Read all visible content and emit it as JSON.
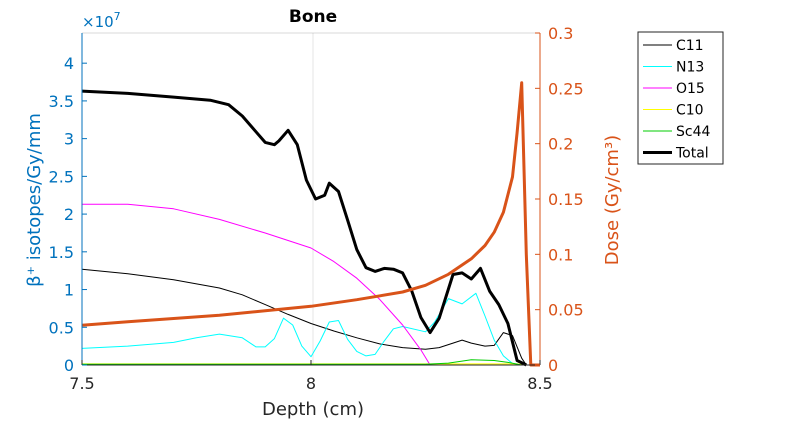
{
  "chart_data": {
    "type": "line",
    "title": "Bone",
    "xlabel": "Depth (cm)",
    "ylabel_left": "β⁺ isotopes/Gy/mm",
    "ylabel_right": "Dose (Gy/cm³)",
    "left_exponent": "×10",
    "left_exponent_power": "7",
    "xlim": [
      7.5,
      8.5
    ],
    "ylim_left": [
      0,
      44000000
    ],
    "ylim_right": [
      0,
      0.3
    ],
    "x_ticks": [
      "7.5",
      "8",
      "8.5"
    ],
    "y_left_ticks": [
      "0",
      "0.5",
      "1",
      "1.5",
      "2",
      "2.5",
      "3",
      "3.5",
      "4"
    ],
    "y_right_ticks": [
      "0",
      "0.05",
      "0.1",
      "0.15",
      "0.2",
      "0.25",
      "0.3"
    ],
    "grid": "x at 8",
    "legend_position": "outside top-right",
    "colors": {
      "left_axis": "#0072BD",
      "right_axis": "#D95319"
    },
    "series": [
      {
        "name": "C11",
        "color": "#000000",
        "width": 1,
        "axis": "left",
        "points": [
          [
            7.5,
            12700000
          ],
          [
            7.6,
            12100000
          ],
          [
            7.7,
            11300000
          ],
          [
            7.8,
            10200000
          ],
          [
            7.85,
            9300000
          ],
          [
            7.9,
            8000000
          ],
          [
            7.95,
            6700000
          ],
          [
            8.0,
            5500000
          ],
          [
            8.05,
            4500000
          ],
          [
            8.1,
            3600000
          ],
          [
            8.15,
            2800000
          ],
          [
            8.2,
            2300000
          ],
          [
            8.25,
            2100000
          ],
          [
            8.28,
            2300000
          ],
          [
            8.31,
            2900000
          ],
          [
            8.33,
            3300000
          ],
          [
            8.35,
            2900000
          ],
          [
            8.38,
            2500000
          ],
          [
            8.4,
            2600000
          ],
          [
            8.42,
            4300000
          ],
          [
            8.44,
            3900000
          ],
          [
            8.46,
            900000
          ],
          [
            8.47,
            0
          ]
        ]
      },
      {
        "name": "N13",
        "color": "#00FFFF",
        "width": 1,
        "axis": "left",
        "points": [
          [
            7.5,
            2200000
          ],
          [
            7.6,
            2500000
          ],
          [
            7.7,
            3000000
          ],
          [
            7.75,
            3600000
          ],
          [
            7.8,
            4100000
          ],
          [
            7.85,
            3600000
          ],
          [
            7.88,
            2400000
          ],
          [
            7.9,
            2400000
          ],
          [
            7.92,
            3500000
          ],
          [
            7.94,
            6200000
          ],
          [
            7.96,
            5300000
          ],
          [
            7.98,
            2500000
          ],
          [
            8.0,
            1100000
          ],
          [
            8.02,
            3200000
          ],
          [
            8.04,
            5700000
          ],
          [
            8.06,
            5900000
          ],
          [
            8.08,
            3400000
          ],
          [
            8.1,
            1800000
          ],
          [
            8.12,
            1200000
          ],
          [
            8.14,
            1400000
          ],
          [
            8.16,
            3200000
          ],
          [
            8.18,
            4800000
          ],
          [
            8.2,
            5100000
          ],
          [
            8.25,
            4400000
          ],
          [
            8.27,
            5700000
          ],
          [
            8.3,
            8800000
          ],
          [
            8.33,
            8100000
          ],
          [
            8.36,
            9500000
          ],
          [
            8.38,
            6500000
          ],
          [
            8.4,
            3300000
          ],
          [
            8.42,
            1200000
          ],
          [
            8.44,
            200000
          ],
          [
            8.46,
            0
          ]
        ]
      },
      {
        "name": "O15",
        "color": "#FF00FF",
        "width": 1,
        "axis": "left",
        "points": [
          [
            7.5,
            21300000
          ],
          [
            7.6,
            21300000
          ],
          [
            7.7,
            20700000
          ],
          [
            7.8,
            19300000
          ],
          [
            7.9,
            17500000
          ],
          [
            8.0,
            15500000
          ],
          [
            8.05,
            13700000
          ],
          [
            8.1,
            11500000
          ],
          [
            8.15,
            8700000
          ],
          [
            8.2,
            5300000
          ],
          [
            8.24,
            2000000
          ],
          [
            8.26,
            0
          ]
        ]
      },
      {
        "name": "C10",
        "color": "#FFFF00",
        "width": 1,
        "axis": "left",
        "points": [
          [
            7.5,
            150000
          ],
          [
            8.0,
            150000
          ],
          [
            8.45,
            150000
          ],
          [
            8.47,
            0
          ]
        ]
      },
      {
        "name": "Sc44",
        "color": "#00CC00",
        "width": 1,
        "axis": "left",
        "points": [
          [
            7.5,
            100000
          ],
          [
            8.25,
            100000
          ],
          [
            8.3,
            250000
          ],
          [
            8.35,
            700000
          ],
          [
            8.4,
            600000
          ],
          [
            8.43,
            350000
          ],
          [
            8.46,
            0
          ]
        ]
      },
      {
        "name": "Total",
        "color": "#000000",
        "width": 3,
        "axis": "left",
        "points": [
          [
            7.5,
            36300000
          ],
          [
            7.6,
            36000000
          ],
          [
            7.7,
            35500000
          ],
          [
            7.78,
            35100000
          ],
          [
            7.82,
            34500000
          ],
          [
            7.85,
            33000000
          ],
          [
            7.88,
            30900000
          ],
          [
            7.9,
            29500000
          ],
          [
            7.92,
            29200000
          ],
          [
            7.93,
            29700000
          ],
          [
            7.95,
            31100000
          ],
          [
            7.97,
            29200000
          ],
          [
            7.99,
            24500000
          ],
          [
            8.01,
            22000000
          ],
          [
            8.03,
            22500000
          ],
          [
            8.04,
            24100000
          ],
          [
            8.06,
            23000000
          ],
          [
            8.08,
            19200000
          ],
          [
            8.1,
            15300000
          ],
          [
            8.12,
            12900000
          ],
          [
            8.14,
            12400000
          ],
          [
            8.16,
            12800000
          ],
          [
            8.18,
            12700000
          ],
          [
            8.2,
            12200000
          ],
          [
            8.22,
            9800000
          ],
          [
            8.24,
            6300000
          ],
          [
            8.26,
            4300000
          ],
          [
            8.28,
            6200000
          ],
          [
            8.31,
            12000000
          ],
          [
            8.33,
            12200000
          ],
          [
            8.35,
            11400000
          ],
          [
            8.37,
            12800000
          ],
          [
            8.39,
            9800000
          ],
          [
            8.41,
            8000000
          ],
          [
            8.43,
            5500000
          ],
          [
            8.45,
            600000
          ],
          [
            8.47,
            0
          ]
        ]
      },
      {
        "name": "Dose",
        "color": "#D95319",
        "width": 3,
        "axis": "right",
        "in_legend": false,
        "points": [
          [
            7.5,
            0.036
          ],
          [
            7.6,
            0.039
          ],
          [
            7.7,
            0.042
          ],
          [
            7.8,
            0.045
          ],
          [
            7.9,
            0.049
          ],
          [
            8.0,
            0.053
          ],
          [
            8.1,
            0.059
          ],
          [
            8.2,
            0.066
          ],
          [
            8.25,
            0.072
          ],
          [
            8.3,
            0.082
          ],
          [
            8.35,
            0.096
          ],
          [
            8.38,
            0.108
          ],
          [
            8.4,
            0.12
          ],
          [
            8.42,
            0.138
          ],
          [
            8.44,
            0.17
          ],
          [
            8.45,
            0.21
          ],
          [
            8.46,
            0.255
          ],
          [
            8.47,
            0.1
          ],
          [
            8.48,
            0.0
          ],
          [
            8.5,
            0.0
          ]
        ]
      }
    ]
  }
}
